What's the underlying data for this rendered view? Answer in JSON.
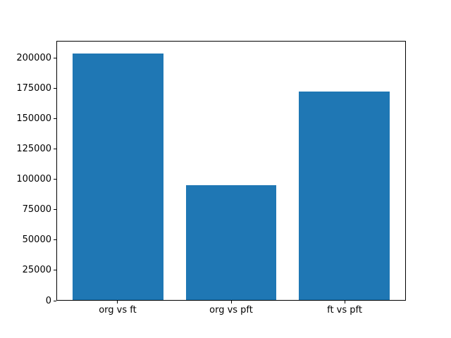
{
  "figure": {
    "background": "#ffffff",
    "spine_color": "#000000",
    "text_color": "#000000"
  },
  "chart_data": {
    "type": "bar",
    "categories": [
      "org vs ft",
      "org vs pft",
      "ft vs pft"
    ],
    "values": [
      204000,
      95000,
      173000
    ],
    "title": "",
    "xlabel": "",
    "ylabel": "",
    "ylim": [
      0,
      214200
    ],
    "yticks": [
      0,
      25000,
      50000,
      75000,
      100000,
      125000,
      150000,
      175000,
      200000
    ],
    "ytick_labels": [
      "0",
      "25000",
      "50000",
      "75000",
      "100000",
      "125000",
      "150000",
      "175000",
      "200000"
    ],
    "bar_color": "#1f77b4",
    "bar_width_fraction": 0.8,
    "grid": false,
    "legend_position": "none"
  }
}
